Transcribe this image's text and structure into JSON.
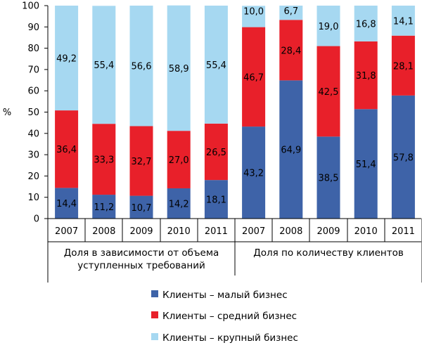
{
  "chart_data": {
    "type": "bar",
    "stacked": true,
    "ylabel": "%",
    "ylim": [
      0,
      100
    ],
    "yticks": [
      "0",
      "10",
      "20",
      "30",
      "40",
      "50",
      "60",
      "70",
      "80",
      "90",
      "100"
    ],
    "categories": [
      "2007",
      "2008",
      "2009",
      "2010",
      "2011",
      "2007",
      "2008",
      "2009",
      "2010",
      "2011"
    ],
    "groups": [
      {
        "label_lines": [
          "Доля в зависимости от объема",
          "уступленных требований"
        ]
      },
      {
        "label_lines": [
          "Доля по количеству клиентов"
        ]
      }
    ],
    "series": [
      {
        "name": "Клиенты – малый бизнес",
        "color": "#3e63a8",
        "values": [
          14.4,
          11.2,
          10.7,
          14.2,
          18.1,
          43.2,
          64.9,
          38.5,
          51.4,
          57.8
        ],
        "labels": [
          "14,4",
          "11,2",
          "10,7",
          "14,2",
          "18,1",
          "43,2",
          "64,9",
          "38,5",
          "51,4",
          "57,8"
        ]
      },
      {
        "name": "Клиенты – средний бизнес",
        "color": "#e8202a",
        "values": [
          36.4,
          33.3,
          32.7,
          27.0,
          26.5,
          46.7,
          28.4,
          42.5,
          31.8,
          28.1
        ],
        "labels": [
          "36,4",
          "33,3",
          "32,7",
          "27,0",
          "26,5",
          "46,7",
          "28,4",
          "42,5",
          "31,8",
          "28,1"
        ]
      },
      {
        "name": "Клиенты – крупный бизнес",
        "color": "#a6d8f1",
        "values": [
          49.2,
          55.4,
          56.6,
          58.9,
          55.4,
          10.0,
          6.7,
          19.0,
          16.8,
          14.1
        ],
        "labels": [
          "49,2",
          "55,4",
          "56,6",
          "58,9",
          "55,4",
          "10,0",
          "6,7",
          "19,0",
          "16,8",
          "14,1"
        ]
      }
    ],
    "grid": false,
    "legend": "bottom"
  }
}
